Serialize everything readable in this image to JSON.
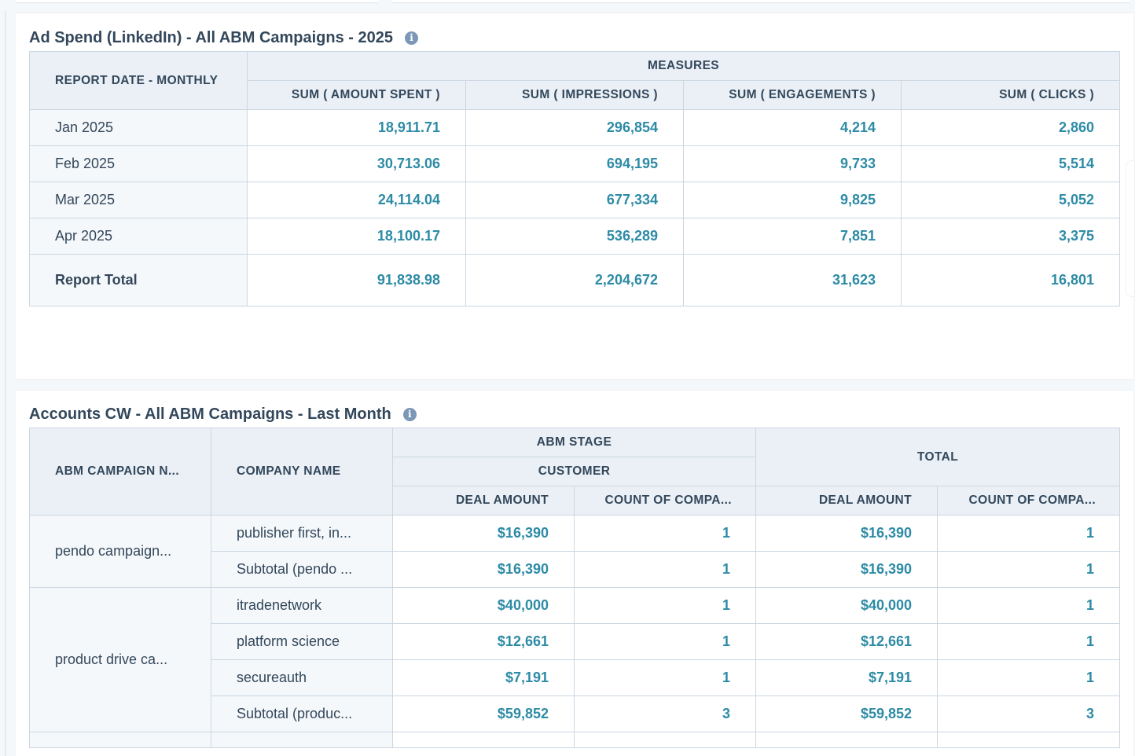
{
  "report1": {
    "title": "Ad Spend (LinkedIn) - All ABM Campaigns - 2025",
    "info_icon": "info-icon",
    "headers": {
      "row_dim": "REPORT DATE - MONTHLY",
      "measures": "MEASURES",
      "columns": [
        "SUM ( AMOUNT SPENT )",
        "SUM ( IMPRESSIONS )",
        "SUM ( ENGAGEMENTS )",
        "SUM ( CLICKS )"
      ]
    },
    "rows": [
      {
        "label": "Jan 2025",
        "values": [
          "18,911.71",
          "296,854",
          "4,214",
          "2,860"
        ]
      },
      {
        "label": "Feb 2025",
        "values": [
          "30,713.06",
          "694,195",
          "9,733",
          "5,514"
        ]
      },
      {
        "label": "Mar 2025",
        "values": [
          "24,114.04",
          "677,334",
          "9,825",
          "5,052"
        ]
      },
      {
        "label": "Apr 2025",
        "values": [
          "18,100.17",
          "536,289",
          "7,851",
          "3,375"
        ]
      }
    ],
    "total": {
      "label": "Report Total",
      "values": [
        "91,838.98",
        "2,204,672",
        "31,623",
        "16,801"
      ]
    }
  },
  "report2": {
    "title": "Accounts CW - All ABM Campaigns - Last Month",
    "info_icon": "info-icon",
    "headers": {
      "campaign": "ABM CAMPAIGN N...",
      "company": "COMPANY NAME",
      "abm_stage": "ABM STAGE",
      "customer": "CUSTOMER",
      "total": "TOTAL",
      "deal_amount": "DEAL AMOUNT",
      "count": "COUNT OF COMPA...",
      "deal_amount_total": "DEAL AMOUNT",
      "count_total": "COUNT OF COMPA..."
    },
    "groups": [
      {
        "campaign": "pendo campaign...",
        "rows": [
          {
            "company": "publisher first, in...",
            "deal": "$16,390",
            "count": "1",
            "total_deal": "$16,390",
            "total_count": "1"
          },
          {
            "company": "Subtotal (pendo ...",
            "deal": "$16,390",
            "count": "1",
            "total_deal": "$16,390",
            "total_count": "1"
          }
        ]
      },
      {
        "campaign": "product drive ca...",
        "rows": [
          {
            "company": "itradenetwork",
            "deal": "$40,000",
            "count": "1",
            "total_deal": "$40,000",
            "total_count": "1"
          },
          {
            "company": "platform science",
            "deal": "$12,661",
            "count": "1",
            "total_deal": "$12,661",
            "total_count": "1"
          },
          {
            "company": "secureauth",
            "deal": "$7,191",
            "count": "1",
            "total_deal": "$7,191",
            "total_count": "1"
          },
          {
            "company": "Subtotal (produc...",
            "deal": "$59,852",
            "count": "3",
            "total_deal": "$59,852",
            "total_count": "3"
          }
        ]
      }
    ]
  }
}
